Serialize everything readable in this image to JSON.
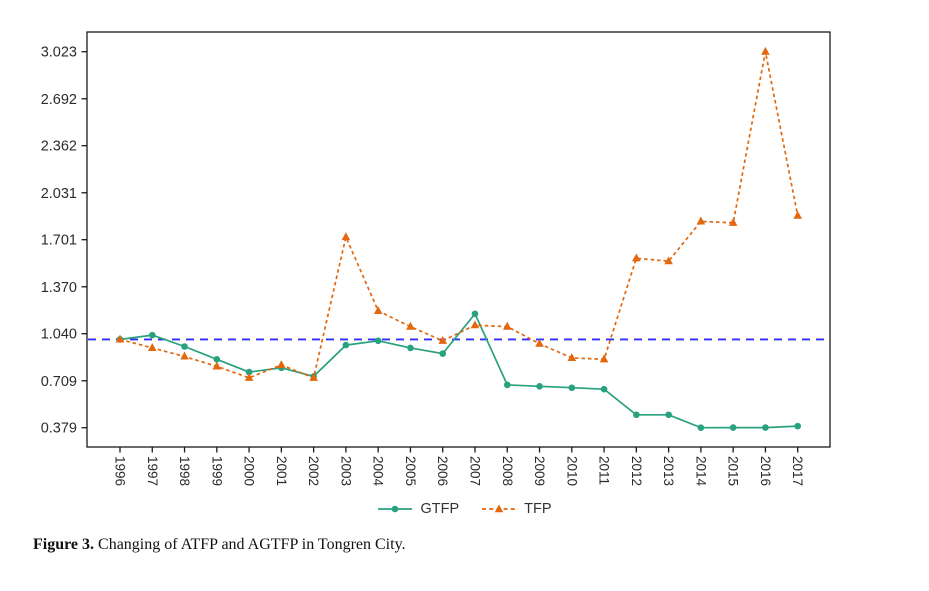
{
  "figure_caption": {
    "label": "Figure 3.",
    "text": " Changing of ATFP and AGTFP in Tongren City."
  },
  "chart_data": {
    "type": "line",
    "title": "",
    "xlabel": "",
    "ylabel": "",
    "grid": false,
    "legend_position": "bottom",
    "x_categories": [
      "1996",
      "1997",
      "1998",
      "1999",
      "2000",
      "2001",
      "2002",
      "2003",
      "2004",
      "2005",
      "2006",
      "2007",
      "2008",
      "2009",
      "2010",
      "2011",
      "2012",
      "2013",
      "2014",
      "2015",
      "2016",
      "2017"
    ],
    "series": [
      {
        "name": "GTFP",
        "color": "#28A17E",
        "marker": "circle",
        "line_style": "solid",
        "values": [
          1.0,
          1.03,
          0.95,
          0.86,
          0.77,
          0.8,
          0.74,
          0.96,
          0.99,
          0.94,
          0.9,
          1.18,
          0.68,
          0.67,
          0.66,
          0.65,
          0.47,
          0.47,
          0.379,
          0.38,
          0.38,
          0.39
        ]
      },
      {
        "name": "TFP",
        "color": "#E2670D",
        "marker": "triangle",
        "line_style": "dashed",
        "values": [
          1.0,
          0.94,
          0.88,
          0.81,
          0.73,
          0.82,
          0.73,
          1.72,
          1.2,
          1.09,
          0.99,
          1.1,
          1.09,
          0.97,
          0.87,
          0.86,
          1.57,
          1.55,
          1.83,
          1.82,
          3.023,
          1.87
        ]
      }
    ],
    "y_tick_labels": [
      "0.379",
      "0.709",
      "1.040",
      "1.370",
      "1.701",
      "2.031",
      "2.362",
      "2.692",
      "3.023"
    ],
    "y_ticks": [
      0.379,
      0.709,
      1.04,
      1.37,
      1.701,
      2.031,
      2.362,
      2.692,
      3.023
    ],
    "ylim": [
      0.379,
      3.023
    ],
    "reference_line": {
      "value": 1.0,
      "color": "#2F2FFF",
      "style": "dashed"
    },
    "axis_color": "#1A1A1A",
    "tick_label_color": "#2B2B2B"
  }
}
